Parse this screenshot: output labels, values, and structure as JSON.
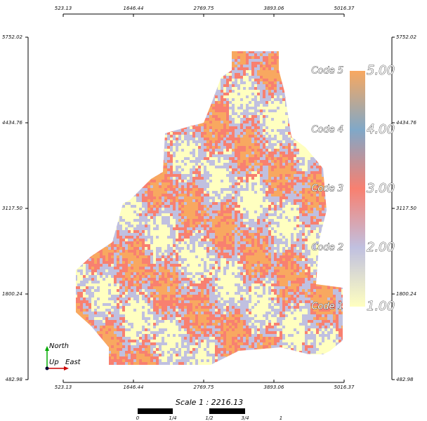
{
  "axes": {
    "x_ticks": [
      "523.13",
      "1646.44",
      "2769.75",
      "3893.06",
      "5016.37"
    ],
    "y_ticks": [
      "5752.02",
      "4434.76",
      "3117.50",
      "1800.24",
      "482.98"
    ]
  },
  "legend": {
    "codes": [
      "Code 5",
      "Code 4",
      "Code 3",
      "Code 2",
      "Code 1"
    ],
    "tick_labels": [
      "5.00",
      "4.00",
      "3.00",
      "2.00",
      "1.00"
    ],
    "colors": [
      "#f8a860",
      "#80a8c8",
      "#f88070",
      "#c0c0e0",
      "#ffffc0"
    ]
  },
  "orientation": {
    "north": "North",
    "up": "Up",
    "east": "East"
  },
  "scale": {
    "label": "Scale 1 : 2216.13",
    "ticks": [
      "0",
      "1/4",
      "1/2",
      "3/4",
      "1"
    ]
  }
}
